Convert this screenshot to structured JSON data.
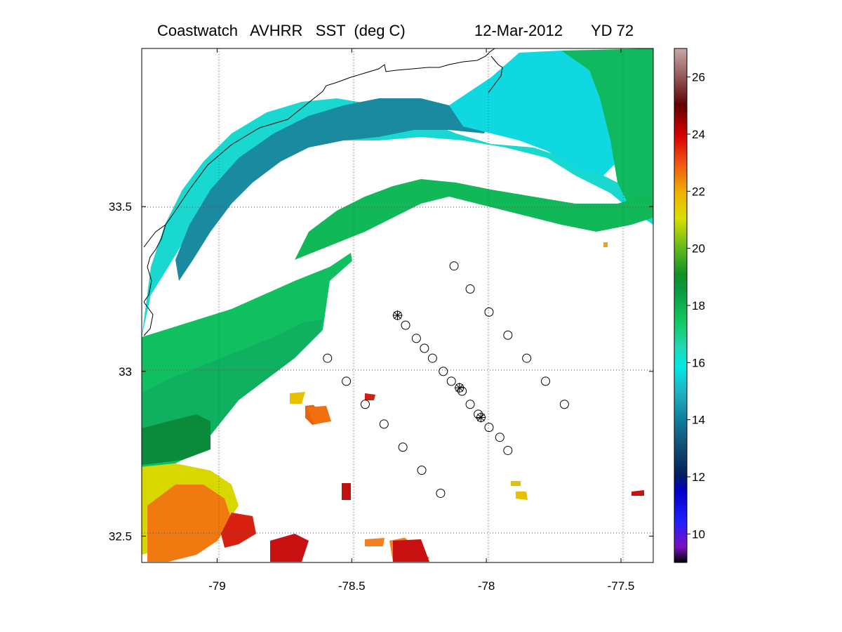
{
  "title": {
    "product": "Coastwatch   AVHRR   SST  (deg C)",
    "date": "12-Mar-2012",
    "yearday": "YD 72"
  },
  "map": {
    "x_ticks": [
      "-79",
      "-78.5",
      "-78",
      "-77.5"
    ],
    "x_tick_values": [
      -79,
      -78.5,
      -78,
      -77.5
    ],
    "y_ticks": [
      "33.5",
      "33",
      "32.5"
    ],
    "y_tick_values": [
      33.5,
      33.0,
      32.5
    ],
    "lon_range": [
      -79.28,
      -77.38
    ],
    "lat_range": [
      32.42,
      33.98
    ],
    "stations_open": [
      [
        -78.12,
        33.32
      ],
      [
        -78.06,
        33.25
      ],
      [
        -77.99,
        33.18
      ],
      [
        -77.92,
        33.11
      ],
      [
        -77.85,
        33.04
      ],
      [
        -77.78,
        32.97
      ],
      [
        -77.71,
        32.9
      ],
      [
        -78.59,
        33.04
      ],
      [
        -78.52,
        32.97
      ],
      [
        -78.45,
        32.9
      ],
      [
        -78.38,
        32.84
      ],
      [
        -78.31,
        32.77
      ],
      [
        -78.24,
        32.7
      ],
      [
        -78.17,
        32.63
      ],
      [
        -78.3,
        33.14
      ],
      [
        -78.26,
        33.1
      ],
      [
        -78.23,
        33.07
      ],
      [
        -78.2,
        33.04
      ],
      [
        -78.16,
        33.0
      ],
      [
        -78.13,
        32.97
      ],
      [
        -78.09,
        32.94
      ],
      [
        -78.06,
        32.9
      ],
      [
        -78.03,
        32.87
      ],
      [
        -77.99,
        32.83
      ],
      [
        -77.95,
        32.8
      ],
      [
        -77.92,
        32.76
      ]
    ],
    "stations_star": [
      [
        -78.33,
        33.17
      ],
      [
        -78.1,
        32.95
      ],
      [
        -78.02,
        32.86
      ]
    ]
  },
  "colorbar": {
    "ticks": [
      "10",
      "12",
      "14",
      "16",
      "18",
      "20",
      "22",
      "24",
      "26"
    ],
    "tick_values": [
      10,
      12,
      14,
      16,
      18,
      20,
      22,
      24,
      26
    ],
    "range": [
      9,
      27
    ],
    "colormap": [
      "#000000",
      "#6a0dad",
      "#0000ff",
      "#001a80",
      "#0a5f8a",
      "#1aa0a8",
      "#00e0e0",
      "#10d060",
      "#088a3a",
      "#50b020",
      "#c8e000",
      "#f0c000",
      "#f06010",
      "#e01010",
      "#a00000",
      "#600000",
      "#a06060",
      "#c0a0a0"
    ]
  }
}
